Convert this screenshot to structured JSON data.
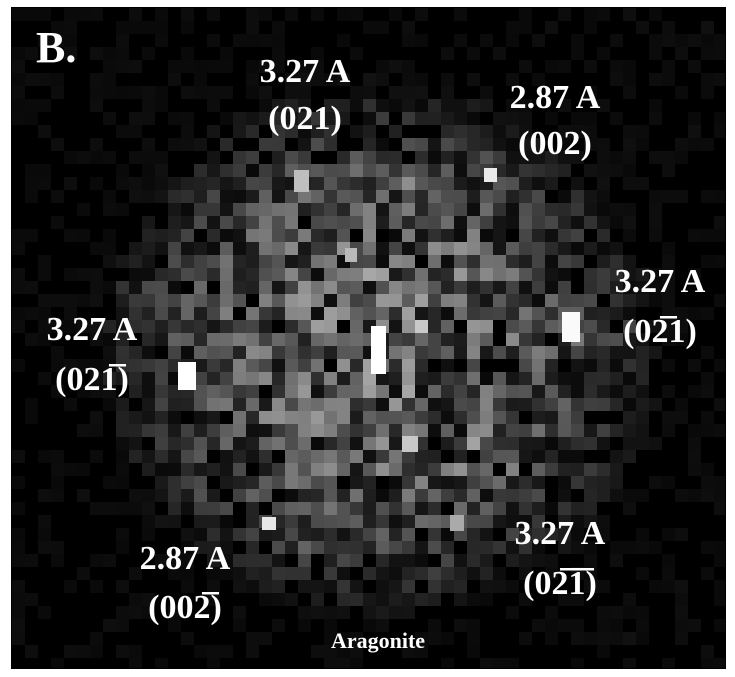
{
  "panel_label": "B.",
  "caption": "Aragonite",
  "spots": [
    {
      "spacing": "3.27 A",
      "index": "(021)"
    },
    {
      "spacing": "2.87 A",
      "index": "(002)"
    },
    {
      "spacing": "3.27 A",
      "index": "(02̅1)"
    },
    {
      "spacing": "3.27 A",
      "index": "(021̅)"
    },
    {
      "spacing": "2.87 A",
      "index": "(002̅)"
    },
    {
      "spacing": "3.27 A",
      "index": "(02̅1̅)"
    }
  ]
}
